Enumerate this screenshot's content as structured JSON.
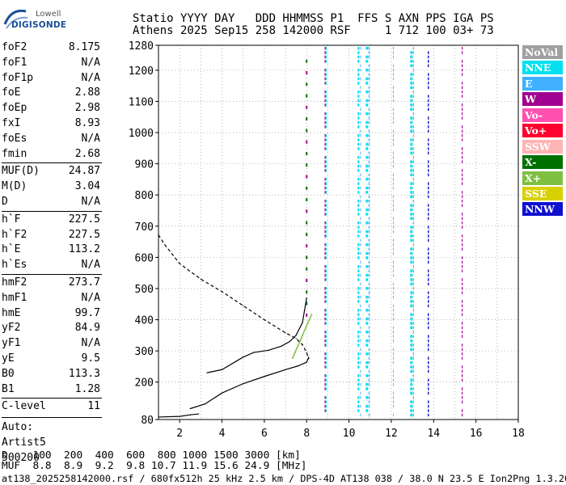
{
  "logo": {
    "top": "Lowell",
    "bottom": "DIGISONDE"
  },
  "header": {
    "line1": "Statio YYYY DAY   DDD HHMMSS P1  FFS S AXN PPS IGA PS",
    "line2": "Athens 2025 Sep15 258 142000 RSF     1 712 100 03+ 73"
  },
  "params": [
    {
      "name": "foF2",
      "value": "8.175"
    },
    {
      "name": "foF1",
      "value": "N/A"
    },
    {
      "name": "foF1p",
      "value": "N/A"
    },
    {
      "name": "foE",
      "value": "2.88"
    },
    {
      "name": "foEp",
      "value": "2.98"
    },
    {
      "name": "fxI",
      "value": "8.93"
    },
    {
      "name": "foEs",
      "value": "N/A"
    },
    {
      "name": "fmin",
      "value": "2.68"
    },
    {
      "name": "MUF(D)",
      "value": "24.87"
    },
    {
      "name": "M(D)",
      "value": "3.04"
    },
    {
      "name": "D",
      "value": "N/A"
    },
    {
      "name": "h`F",
      "value": "227.5"
    },
    {
      "name": "h`F2",
      "value": "227.5"
    },
    {
      "name": "h`E",
      "value": "113.2"
    },
    {
      "name": "h`Es",
      "value": "N/A"
    },
    {
      "name": "hmF2",
      "value": "273.7"
    },
    {
      "name": "hmF1",
      "value": "N/A"
    },
    {
      "name": "hmE",
      "value": "99.7"
    },
    {
      "name": "yF2",
      "value": "84.9"
    },
    {
      "name": "yF1",
      "value": "N/A"
    },
    {
      "name": "yE",
      "value": "9.5"
    },
    {
      "name": "B0",
      "value": "113.3"
    },
    {
      "name": "B1",
      "value": "1.28"
    },
    {
      "name": "C-level",
      "value": "11"
    }
  ],
  "auto": {
    "label": "Auto:",
    "program": "Artist5",
    "version": "500200"
  },
  "legend": [
    {
      "label": "NoVal",
      "color": "#a0a0a0"
    },
    {
      "label": "NNE",
      "color": "#00e0f0"
    },
    {
      "label": "E",
      "color": "#40b0ff"
    },
    {
      "label": "W",
      "color": "#a00090"
    },
    {
      "label": "Vo-",
      "color": "#ff50b0"
    },
    {
      "label": "Vo+",
      "color": "#ff0030"
    },
    {
      "label": "SSW",
      "color": "#ffb4b4"
    },
    {
      "label": "X-",
      "color": "#007000"
    },
    {
      "label": "X+",
      "color": "#80c040"
    },
    {
      "label": "SSE",
      "color": "#d8d000"
    },
    {
      "label": "NNW",
      "color": "#1010d0"
    }
  ],
  "chart_data": {
    "type": "scatter",
    "title": "",
    "xlabel": "",
    "ylabel": "",
    "xlim": [
      1,
      18
    ],
    "ylim": [
      80,
      1280
    ],
    "xticks": [
      2,
      4,
      6,
      8,
      10,
      12,
      14,
      16,
      18
    ],
    "yticks": [
      80,
      200,
      300,
      400,
      500,
      600,
      700,
      800,
      900,
      1000,
      1100,
      1200,
      1280
    ],
    "grid": true,
    "series": [
      {
        "values": [
          [
            3.3,
            230
          ],
          [
            4.0,
            240
          ],
          [
            5.0,
            280
          ],
          [
            5.5,
            295
          ],
          [
            6.2,
            302
          ],
          [
            6.8,
            315
          ],
          [
            7.2,
            330
          ],
          [
            7.5,
            350
          ],
          [
            7.8,
            390
          ],
          [
            7.9,
            430
          ],
          [
            8.0,
            470
          ]
        ]
      },
      {
        "values": [
          [
            2.5,
            115
          ],
          [
            3.2,
            130
          ],
          [
            4.0,
            165
          ],
          [
            5.0,
            195
          ],
          [
            6.0,
            218
          ],
          [
            7.0,
            240
          ],
          [
            7.6,
            252
          ],
          [
            8.0,
            264
          ],
          [
            8.1,
            280
          ]
        ]
      },
      {
        "values": [
          [
            1.0,
            672
          ],
          [
            1.3,
            640
          ],
          [
            2.0,
            580
          ],
          [
            3.0,
            530
          ],
          [
            4.0,
            490
          ],
          [
            5.0,
            445
          ],
          [
            6.0,
            400
          ],
          [
            7.0,
            358
          ],
          [
            7.5,
            340
          ],
          [
            7.8,
            320
          ],
          [
            8.0,
            295
          ],
          [
            8.1,
            275
          ]
        ]
      },
      {
        "values": [
          [
            1.0,
            88
          ],
          [
            2.0,
            90
          ],
          [
            2.5,
            95
          ],
          [
            2.9,
            98
          ]
        ]
      }
    ]
  },
  "bottom": {
    "line1": "D    100  200  400  600  800 1000 1500 3000 [km]",
    "line2": "MUF  8.8  8.9  9.2  9.8 10.7 11.9 15.6 24.9 [MHz]",
    "footer": "at138_2025258142000.rsf / 680fx512h 25 kHz 2.5 km / DPS-4D AT138 038 / 38.0 N 23.5 E Ion2Png 1.3.20"
  }
}
